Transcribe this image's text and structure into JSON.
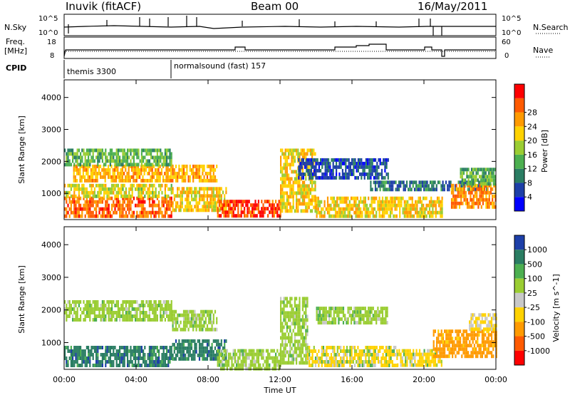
{
  "header": {
    "station": "Inuvik (fitACF)",
    "beam": "Beam 00",
    "date": "16/May/2011"
  },
  "params_panel": {
    "nsky_label": "N.Sky",
    "nsearch_label": "N.Search",
    "freq_label_line1": "Freq.",
    "freq_label_line2": "[MHz]",
    "nave_label": "Nave",
    "cpid_label": "CPID",
    "left_ticks_top": [
      "10^5",
      "10^0"
    ],
    "right_ticks_top": [
      "10^5",
      "10^0"
    ],
    "left_ticks_freq": [
      "18",
      "8"
    ],
    "right_ticks_nave": [
      "60",
      "0"
    ],
    "cpid_segments": [
      {
        "label": "themis 3300",
        "start": "00:00",
        "end": "06:00"
      },
      {
        "label": "normalsound (fast) 157",
        "start": "06:00",
        "end": "24:00"
      }
    ]
  },
  "chart_data": [
    {
      "type": "heatmap",
      "name": "power-panel",
      "xlabel": "",
      "ylabel": "Slant Range [km]",
      "x_range_hours": [
        0,
        24
      ],
      "x_ticks": [
        "00:00",
        "04:00",
        "08:00",
        "12:00",
        "16:00",
        "20:00",
        "00:00"
      ],
      "y_range_km": [
        180,
        4550
      ],
      "y_ticks": [
        1000,
        2000,
        3000,
        4000
      ],
      "colorbar": {
        "label": "Power [dB]",
        "ticks": [
          4,
          8,
          12,
          16,
          20,
          24,
          28
        ],
        "range": [
          0,
          32
        ],
        "colors": [
          "#0000ff",
          "#1d3fa8",
          "#2a7d63",
          "#4caf50",
          "#9acd32",
          "#ffd200",
          "#ff9a00",
          "#ff5a00",
          "#ff0000"
        ]
      },
      "bands": [
        {
          "start_h": 0.0,
          "end_h": 6.0,
          "range_km": [
            300,
            900
          ],
          "value": 26
        },
        {
          "start_h": 0.0,
          "end_h": 6.0,
          "range_km": [
            900,
            1300
          ],
          "value": 18
        },
        {
          "start_h": 0.5,
          "end_h": 6.0,
          "range_km": [
            1400,
            1900
          ],
          "value": 22
        },
        {
          "start_h": 0.0,
          "end_h": 6.0,
          "range_km": [
            1900,
            2400
          ],
          "value": 13
        },
        {
          "start_h": 6.0,
          "end_h": 9.0,
          "range_km": [
            500,
            1200
          ],
          "value": 20
        },
        {
          "start_h": 6.0,
          "end_h": 8.5,
          "range_km": [
            1400,
            1900
          ],
          "value": 22
        },
        {
          "start_h": 8.5,
          "end_h": 12.0,
          "range_km": [
            250,
            800
          ],
          "value": 28
        },
        {
          "start_h": 12.0,
          "end_h": 14.0,
          "range_km": [
            400,
            2400
          ],
          "value": 20
        },
        {
          "start_h": 13.0,
          "end_h": 18.0,
          "range_km": [
            1500,
            2100
          ],
          "value": 6
        },
        {
          "start_h": 14.0,
          "end_h": 21.0,
          "range_km": [
            300,
            900
          ],
          "value": 20
        },
        {
          "start_h": 17.0,
          "end_h": 23.5,
          "range_km": [
            1100,
            1400
          ],
          "value": 8
        },
        {
          "start_h": 21.5,
          "end_h": 24.0,
          "range_km": [
            600,
            1300
          ],
          "value": 24
        },
        {
          "start_h": 22.0,
          "end_h": 24.0,
          "range_km": [
            1300,
            1800
          ],
          "value": 12
        }
      ]
    },
    {
      "type": "heatmap",
      "name": "velocity-panel",
      "xlabel": "Time UT",
      "ylabel": "Slant Range [km]",
      "x_range_hours": [
        0,
        24
      ],
      "x_ticks": [
        "00:00",
        "04:00",
        "08:00",
        "12:00",
        "16:00",
        "20:00",
        "00:00"
      ],
      "y_range_km": [
        180,
        4550
      ],
      "y_ticks": [
        1000,
        2000,
        3000,
        4000
      ],
      "colorbar": {
        "label": "Velocity [m s^-1]",
        "ticks": [
          "1000",
          "500",
          "100",
          "25",
          "-25",
          "-100",
          "-500",
          "-1000"
        ],
        "colors": [
          "#1d3fa8",
          "#2a7d63",
          "#4caf50",
          "#9acd32",
          "#c8c8c8",
          "#ffd200",
          "#ff9a00",
          "#ff5a00",
          "#ff0000"
        ]
      },
      "bands": [
        {
          "start_h": 0.0,
          "end_h": 6.0,
          "range_km": [
            350,
            900
          ],
          "value": 300
        },
        {
          "start_h": 0.0,
          "end_h": 6.0,
          "range_km": [
            1700,
            2300
          ],
          "value": 0
        },
        {
          "start_h": 6.0,
          "end_h": 9.0,
          "range_km": [
            500,
            1100
          ],
          "value": 300
        },
        {
          "start_h": 6.0,
          "end_h": 8.5,
          "range_km": [
            1400,
            2000
          ],
          "value": 0
        },
        {
          "start_h": 8.5,
          "end_h": 12.0,
          "range_km": [
            250,
            800
          ],
          "value": 0
        },
        {
          "start_h": 12.0,
          "end_h": 13.5,
          "range_km": [
            400,
            2400
          ],
          "value": 0
        },
        {
          "start_h": 13.5,
          "end_h": 18.5,
          "range_km": [
            300,
            900
          ],
          "value": -150
        },
        {
          "start_h": 14.0,
          "end_h": 18.0,
          "range_km": [
            1600,
            2100
          ],
          "value": 0
        },
        {
          "start_h": 18.5,
          "end_h": 21.0,
          "range_km": [
            300,
            800
          ],
          "value": -200
        },
        {
          "start_h": 20.5,
          "end_h": 24.0,
          "range_km": [
            600,
            1400
          ],
          "value": -700
        },
        {
          "start_h": 22.5,
          "end_h": 24.0,
          "range_km": [
            1400,
            1900
          ],
          "value": -100
        }
      ]
    }
  ]
}
